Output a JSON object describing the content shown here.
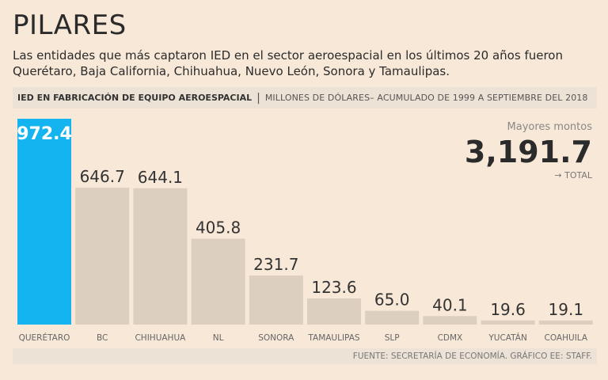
{
  "header": {
    "title": "PILARES",
    "subtitle": "Las entidades que más captaron IED en el sector aeroespacial en los últimos 20 años fueron Querétaro, Baja California, Chihuahua, Nuevo León, Sonora y Tamaulipas."
  },
  "band": {
    "bold": "IED EN FABRICACIÓN DE EQUIPO AEROESPACIAL",
    "separator": "|",
    "light": "MILLONES DE DÓLARES– ACUMULADO DE 1999 A SEPTIEMBRE DEL 2018"
  },
  "summary": {
    "label": "Mayores montos",
    "total": "3,191.7",
    "caption": "→ TOTAL"
  },
  "footer": {
    "source": "FUENTE: SECRETARÍA DE ECONOMÍA. GRÁFICO EE: STAFF."
  },
  "colors": {
    "highlight": "#14b4f0",
    "bar": "#dccfc0",
    "background": "#f8e8d8"
  },
  "chart_data": {
    "type": "bar",
    "title": "IED EN FABRICACIÓN DE EQUIPO AEROESPACIAL",
    "ylabel": "MILLONES DE DÓLARES",
    "categories": [
      "QUERÉTARO",
      "BC",
      "CHIHUAHUA",
      "NL",
      "SONORA",
      "TAMAULIPAS",
      "SLP",
      "CDMX",
      "YUCATÁN",
      "COAHUILA"
    ],
    "values": [
      972.4,
      646.7,
      644.1,
      405.8,
      231.7,
      123.6,
      65.0,
      40.1,
      19.6,
      19.1
    ],
    "value_labels": [
      "972.4",
      "646.7",
      "644.1",
      "405.8",
      "231.7",
      "123.6",
      "65.0",
      "40.1",
      "19.6",
      "19.1"
    ],
    "highlight_index": 0,
    "ylim": [
      0,
      972.4
    ],
    "grid": false,
    "legend": "none"
  }
}
